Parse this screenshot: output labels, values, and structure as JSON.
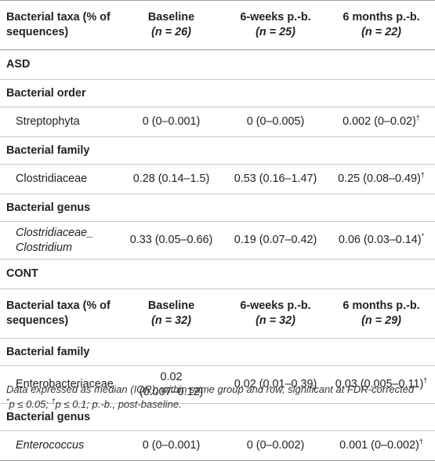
{
  "header_asd": {
    "col1": "Bacterial taxa (% of sequences)",
    "col2": "Baseline",
    "col2_n": "(n = 26)",
    "col3": "6-weeks p.-b.",
    "col3_n": "(n = 25)",
    "col4": "6 months p.-b.",
    "col4_n": "(n = 22)"
  },
  "asd": {
    "label": "ASD",
    "order_label": "Bacterial order",
    "order_row": {
      "taxon": "Streptophyta",
      "baseline": "0 (0–0.001)",
      "w6": "0 (0–0.005)",
      "m6": "0.002 (0–0.02)",
      "m6_mark": "†"
    },
    "family_label": "Bacterial family",
    "family_row": {
      "taxon": "Clostridiaceae",
      "baseline": "0.28 (0.14–1.5)",
      "w6": "0.53 (0.16–1.47)",
      "m6": "0.25 (0.08–0.49)",
      "m6_mark": "†"
    },
    "genus_label": "Bacterial genus",
    "genus_row": {
      "taxon_line1": "Clostridiaceae_",
      "taxon_line2": "Clostridium",
      "baseline": "0.33 (0.05–0.66)",
      "w6": "0.19 (0.07–0.42)",
      "m6": "0.06 (0.03–0.14)",
      "m6_mark": "*"
    }
  },
  "cont": {
    "label": "CONT",
    "header": {
      "col1": "Bacterial taxa (% of sequences)",
      "col2": "Baseline",
      "col2_n": "(n = 32)",
      "col3": "6-weeks p.-b.",
      "col3_n": "(n = 32)",
      "col4": "6 months p.-b.",
      "col4_n": "(n = 29)"
    },
    "family_label": "Bacterial family",
    "family_row": {
      "taxon": "Enterobacteriaceae",
      "baseline_line1": "0.02",
      "baseline_line2": "(0.007–0.12)",
      "w6": "0.02 (0.01–0.39)",
      "m6": "0.03 (0.005–0.11)",
      "m6_mark": "†"
    },
    "genus_label": "Bacterial genus",
    "genus_row": {
      "taxon": "Enterococcus",
      "baseline": "0 (0–0.001)",
      "w6": "0 (0–0.002)",
      "m6": "0.001 (0–0.002)",
      "m6_mark": "†"
    }
  },
  "footnote": {
    "line1": "Data expressed as median (IQR); within same group and row, significant at FDR-corrected",
    "line2_mark1": "*",
    "line2_a": "p ≤ 0.05; ",
    "line2_mark2": "†",
    "line2_b": "p ≤ 0.1; p.-b., post-baseline."
  }
}
